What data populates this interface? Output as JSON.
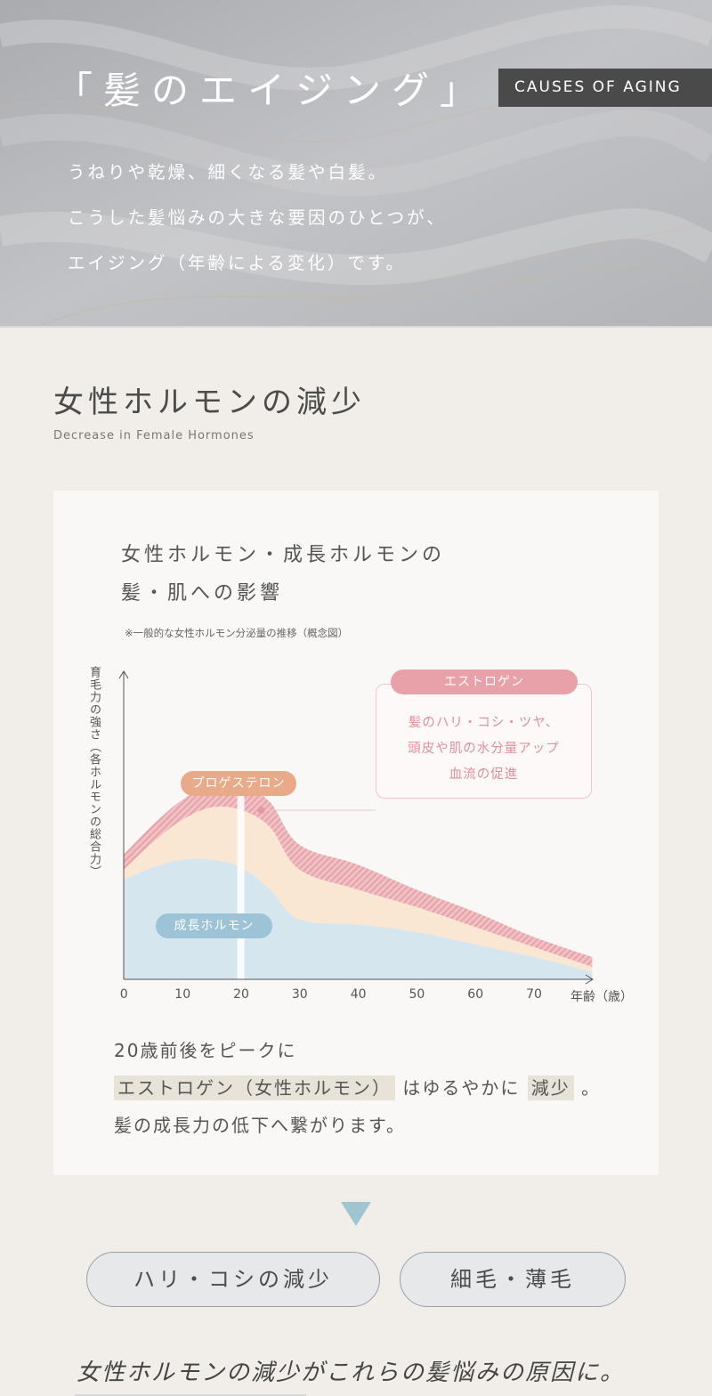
{
  "hero": {
    "title": "「髪のエイジング」",
    "badge": "CAUSES OF AGING",
    "lines": [
      "うねりや乾燥、細くなる髪や白髪。",
      "こうした髪悩みの大きな要因のひとつが、",
      "エイジング（年齢による変化）です。"
    ]
  },
  "section": {
    "title": "女性ホルモンの減少",
    "subtitle": "Decrease in Female Hormones"
  },
  "card": {
    "heading": [
      "女性ホルモン・成長ホルモンの",
      "髪・肌への影響"
    ],
    "note": "※一般的な女性ホルモン分泌量の推移（概念図）"
  },
  "chart_data": {
    "type": "area",
    "ylabel": "育毛力の強さ（各ホルモンの総合力）",
    "xlabel": "年齢（歳）",
    "x_ticks": [
      0,
      10,
      20,
      30,
      40,
      50,
      60,
      70
    ],
    "xlim": [
      0,
      80
    ],
    "highlight_age": 20,
    "series": [
      {
        "name": "成長ホルモン",
        "color": "#d6e6ee",
        "label_color": "#9dc3d6",
        "x": [
          0,
          5,
          10,
          15,
          20,
          25,
          30,
          40,
          50,
          60,
          70,
          80
        ],
        "values": [
          40,
          45,
          48,
          48,
          45,
          36,
          24,
          22,
          19,
          14,
          9,
          3
        ]
      },
      {
        "name": "プロゲステロン",
        "color": "#f9e6d3",
        "label_color": "#e9aa8a",
        "x": [
          0,
          5,
          10,
          15,
          20,
          25,
          30,
          40,
          50,
          60,
          70,
          80
        ],
        "values": [
          4,
          10,
          16,
          21,
          23,
          25,
          20,
          14,
          10,
          7,
          4,
          2
        ]
      },
      {
        "name": "エストロゲン",
        "color": "#eab2b7",
        "label_color": "#e8a1a8",
        "x": [
          0,
          5,
          10,
          15,
          20,
          25,
          30,
          40,
          50,
          60,
          70,
          80
        ],
        "values": [
          6,
          7,
          8,
          9,
          10,
          10,
          10,
          10,
          7,
          6,
          4,
          4
        ]
      }
    ],
    "estrogen_note": [
      "髪のハリ・コシ・ツヤ、",
      "頭皮や肌の水分量アップ",
      "血流の促進"
    ]
  },
  "description": {
    "line1": "20歳前後をピークに",
    "line2_highlight1": "エストロゲン（女性ホルモン）",
    "line2_mid": "はゆるやかに",
    "line2_highlight2": "減少",
    "line2_end": "。",
    "line3": "髪の成長力の低下へ繋がります。"
  },
  "results": {
    "pill1": "ハリ・コシの減少",
    "pill2": "細毛・薄毛",
    "closing": "女性ホルモンの減少がこれらの髪悩みの原因に。"
  },
  "colors": {
    "hero_bg": "#b9babd",
    "badge_bg": "#4a4a4a",
    "arrow": "#9fc4d2",
    "page_bg": "#f1eeea"
  }
}
